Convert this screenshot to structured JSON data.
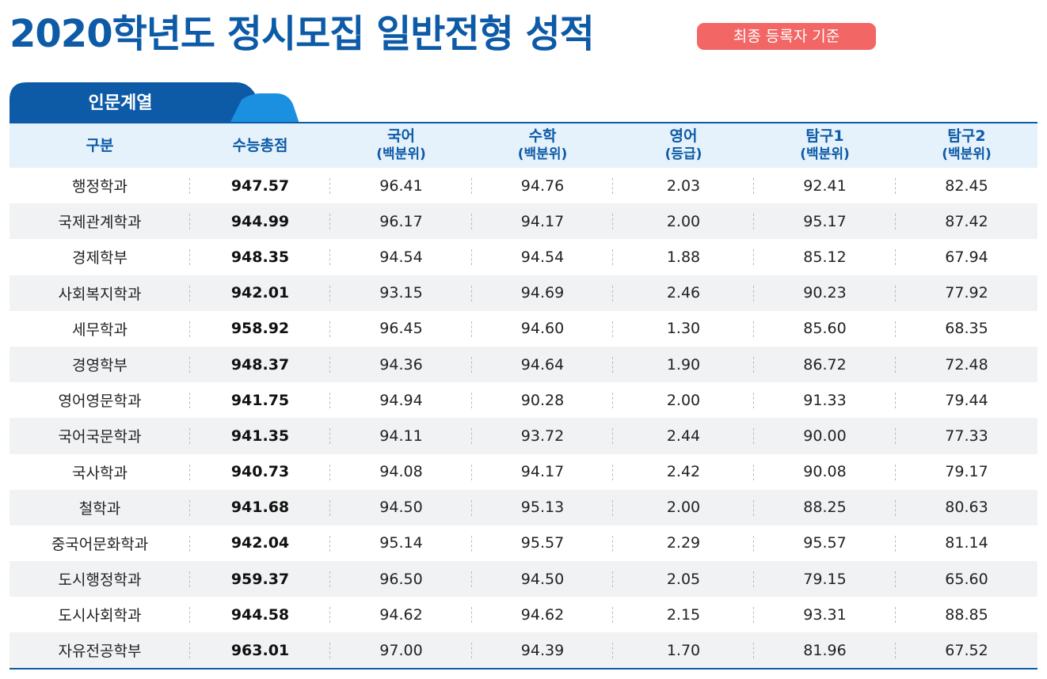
{
  "title": "2020학년도 정시모집 일반전형 성적",
  "badge": "최종 등록자 기준",
  "tab": {
    "label": "인문계열"
  },
  "columns": [
    {
      "label": "구분",
      "sub": ""
    },
    {
      "label": "수능총점",
      "sub": ""
    },
    {
      "label": "국어",
      "sub": "(백분위)"
    },
    {
      "label": "수학",
      "sub": "(백분위)"
    },
    {
      "label": "영어",
      "sub": "(등급)"
    },
    {
      "label": "탐구1",
      "sub": "(백분위)"
    },
    {
      "label": "탐구2",
      "sub": "(백분위)"
    }
  ],
  "rows": [
    {
      "dept": "행정학과",
      "total": "947.57",
      "korean": "96.41",
      "math": "94.76",
      "english": "2.03",
      "inquiry1": "92.41",
      "inquiry2": "82.45"
    },
    {
      "dept": "국제관계학과",
      "total": "944.99",
      "korean": "96.17",
      "math": "94.17",
      "english": "2.00",
      "inquiry1": "95.17",
      "inquiry2": "87.42"
    },
    {
      "dept": "경제학부",
      "total": "948.35",
      "korean": "94.54",
      "math": "94.54",
      "english": "1.88",
      "inquiry1": "85.12",
      "inquiry2": "67.94"
    },
    {
      "dept": "사회복지학과",
      "total": "942.01",
      "korean": "93.15",
      "math": "94.69",
      "english": "2.46",
      "inquiry1": "90.23",
      "inquiry2": "77.92"
    },
    {
      "dept": "세무학과",
      "total": "958.92",
      "korean": "96.45",
      "math": "94.60",
      "english": "1.30",
      "inquiry1": "85.60",
      "inquiry2": "68.35"
    },
    {
      "dept": "경영학부",
      "total": "948.37",
      "korean": "94.36",
      "math": "94.64",
      "english": "1.90",
      "inquiry1": "86.72",
      "inquiry2": "72.48"
    },
    {
      "dept": "영어영문학과",
      "total": "941.75",
      "korean": "94.94",
      "math": "90.28",
      "english": "2.00",
      "inquiry1": "91.33",
      "inquiry2": "79.44"
    },
    {
      "dept": "국어국문학과",
      "total": "941.35",
      "korean": "94.11",
      "math": "93.72",
      "english": "2.44",
      "inquiry1": "90.00",
      "inquiry2": "77.33"
    },
    {
      "dept": "국사학과",
      "total": "940.73",
      "korean": "94.08",
      "math": "94.17",
      "english": "2.42",
      "inquiry1": "90.08",
      "inquiry2": "79.17"
    },
    {
      "dept": "철학과",
      "total": "941.68",
      "korean": "94.50",
      "math": "95.13",
      "english": "2.00",
      "inquiry1": "88.25",
      "inquiry2": "80.63"
    },
    {
      "dept": "중국어문화학과",
      "total": "942.04",
      "korean": "95.14",
      "math": "95.57",
      "english": "2.29",
      "inquiry1": "95.57",
      "inquiry2": "81.14"
    },
    {
      "dept": "도시행정학과",
      "total": "959.37",
      "korean": "96.50",
      "math": "94.50",
      "english": "2.05",
      "inquiry1": "79.15",
      "inquiry2": "65.60"
    },
    {
      "dept": "도시사회학과",
      "total": "944.58",
      "korean": "94.62",
      "math": "94.62",
      "english": "2.15",
      "inquiry1": "93.31",
      "inquiry2": "88.85"
    },
    {
      "dept": "자유전공학부",
      "total": "963.01",
      "korean": "97.00",
      "math": "94.39",
      "english": "1.70",
      "inquiry1": "81.96",
      "inquiry2": "67.52"
    }
  ],
  "colors": {
    "primary": "#0d5aa7",
    "tab_light": "#1b8fe0",
    "badge": "#f26665",
    "header_bg": "#e5f2fb",
    "row_alt": "#f1f2f3"
  }
}
